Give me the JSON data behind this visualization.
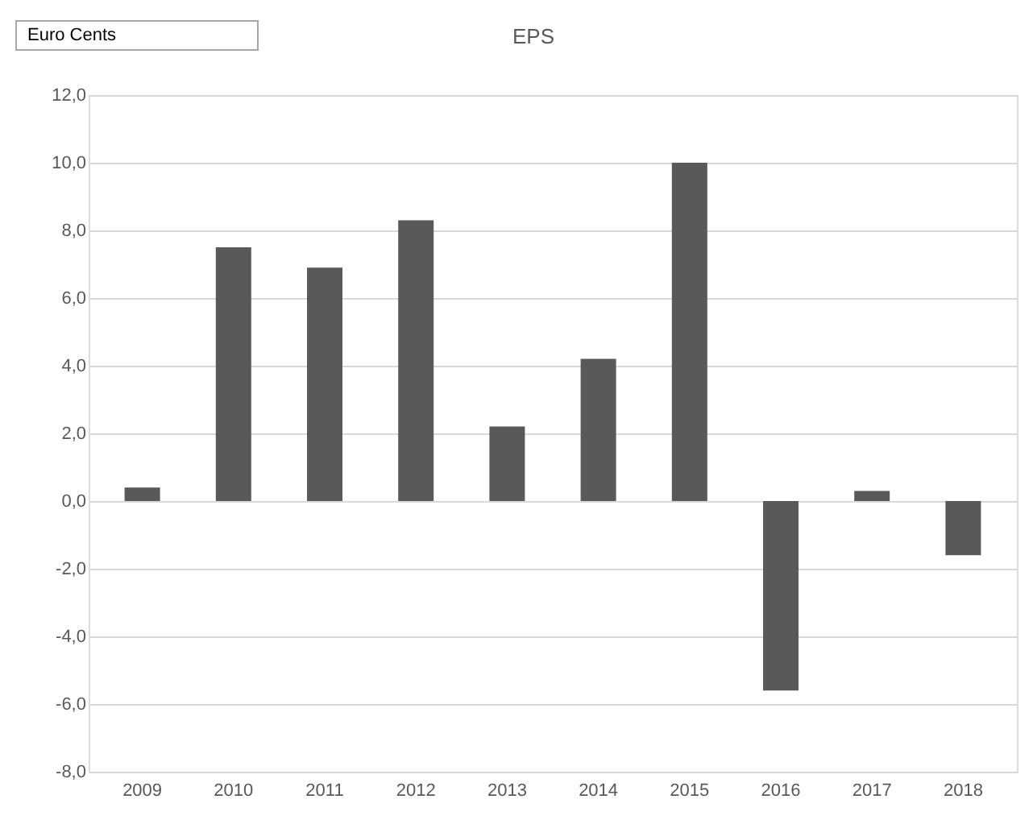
{
  "chart_data": {
    "type": "bar",
    "title": "EPS",
    "annotations": [
      "Euro Cents"
    ],
    "categories": [
      "2009",
      "2010",
      "2011",
      "2012",
      "2013",
      "2014",
      "2015",
      "2016",
      "2017",
      "2018"
    ],
    "values": [
      0.4,
      7.5,
      6.9,
      8.3,
      2.2,
      4.2,
      10.0,
      -5.6,
      0.3,
      -1.6
    ],
    "color": "#595959",
    "ylim": [
      -8,
      12
    ],
    "yticks": [
      {
        "value": -8,
        "label": "-8,0"
      },
      {
        "value": -6,
        "label": "-6,0"
      },
      {
        "value": -4,
        "label": "-4,0"
      },
      {
        "value": -2,
        "label": "-2,0"
      },
      {
        "value": 0,
        "label": "0,0"
      },
      {
        "value": 2,
        "label": "2,0"
      },
      {
        "value": 4,
        "label": "4,0"
      },
      {
        "value": 6,
        "label": "6,0"
      },
      {
        "value": 8,
        "label": "8,0"
      },
      {
        "value": 10,
        "label": "10,0"
      },
      {
        "value": 12,
        "label": "12,0"
      }
    ],
    "grid": "y"
  }
}
